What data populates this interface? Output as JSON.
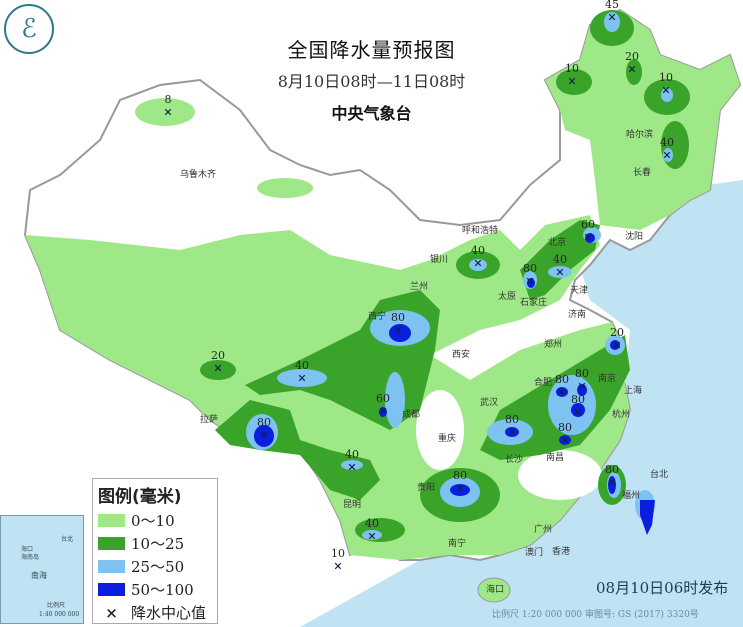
{
  "header": {
    "title": "全国降水量预报图",
    "period": "8月10日08时—11日08时",
    "issuer": "中央气象台"
  },
  "logo": {
    "icon": "cma-logo-icon",
    "glyph": "ℰ"
  },
  "legend": {
    "title": "图例(毫米)",
    "items": [
      {
        "label": "0～10",
        "color": "#9fe887"
      },
      {
        "label": "10～25",
        "color": "#3aa32a"
      },
      {
        "label": "25～50",
        "color": "#7ec2f2"
      },
      {
        "label": "50～100",
        "color": "#0a1ee0"
      }
    ],
    "center_marker": "×",
    "center_label": "降水中心值"
  },
  "inset": {
    "labels": [
      "海口",
      "海南岛",
      "南海",
      "台北",
      "比例尺",
      "1:40 000 000"
    ]
  },
  "footer": {
    "published": "08月10日06时发布",
    "scale": "比例尺 1:20 000 000    审图号: GS (2017) 3320号"
  },
  "colors": {
    "sea": "#bfe3f2",
    "no_rain": "#ffffff",
    "border": "#999999"
  },
  "cities": [
    "乌鲁木齐",
    "拉萨",
    "西宁",
    "兰州",
    "银川",
    "呼和浩特",
    "太原",
    "石家庄",
    "北京",
    "天津",
    "沈阳",
    "长春",
    "哈尔滨",
    "济南",
    "郑州",
    "西安",
    "成都",
    "重庆",
    "贵阳",
    "昆明",
    "南宁",
    "武汉",
    "长沙",
    "南昌",
    "合肥",
    "南京",
    "上海",
    "杭州",
    "福州",
    "台北",
    "广州",
    "香港",
    "澳门",
    "海口"
  ],
  "rain_centers": [
    "45",
    "10",
    "20",
    "10",
    "40",
    "8",
    "40",
    "60",
    "80",
    "40",
    "20",
    "80",
    "20",
    "40",
    "60",
    "80",
    "40",
    "80",
    "80",
    "80",
    "80",
    "80",
    "80",
    "40",
    "10",
    "80"
  ]
}
